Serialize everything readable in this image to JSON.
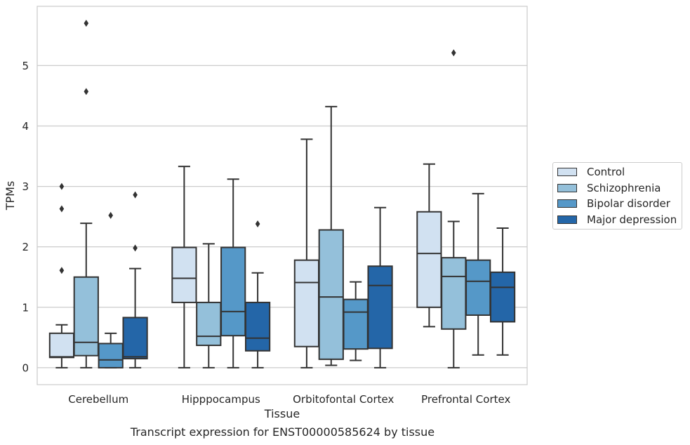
{
  "caption": "Transcript expression for ENST00000585624 by tissue",
  "chart_data": {
    "type": "box",
    "xlabel": "Tissue",
    "ylabel": "TPMs",
    "ylim": [
      -0.28,
      5.98
    ],
    "yticks": [
      0,
      1,
      2,
      3,
      4,
      5
    ],
    "grid": true,
    "legend_position": "right",
    "categories": [
      "Cerebellum",
      "Hipppocampus",
      "Orbitofontal Cortex",
      "Prefrontal Cortex"
    ],
    "series": [
      {
        "name": "Control",
        "color": "#d1e1f1",
        "boxes": [
          {
            "whisker_low": 0.0,
            "q1": 0.17,
            "median": 0.18,
            "q3": 0.57,
            "whisker_high": 0.71,
            "outliers": [
              1.61,
              2.63,
              3.0
            ]
          },
          {
            "whisker_low": 0.0,
            "q1": 1.08,
            "median": 1.48,
            "q3": 1.99,
            "whisker_high": 3.33,
            "outliers": []
          },
          {
            "whisker_low": 0.0,
            "q1": 0.35,
            "median": 1.41,
            "q3": 1.78,
            "whisker_high": 3.78,
            "outliers": []
          },
          {
            "whisker_low": 0.68,
            "q1": 1.0,
            "median": 1.89,
            "q3": 2.58,
            "whisker_high": 3.37,
            "outliers": []
          }
        ]
      },
      {
        "name": "Schizophrenia",
        "color": "#94c0da",
        "boxes": [
          {
            "whisker_low": 0.0,
            "q1": 0.2,
            "median": 0.42,
            "q3": 1.5,
            "whisker_high": 2.39,
            "outliers": [
              4.57,
              5.7
            ]
          },
          {
            "whisker_low": 0.0,
            "q1": 0.37,
            "median": 0.52,
            "q3": 1.08,
            "whisker_high": 2.05,
            "outliers": []
          },
          {
            "whisker_low": 0.04,
            "q1": 0.14,
            "median": 1.17,
            "q3": 2.28,
            "whisker_high": 4.32,
            "outliers": []
          },
          {
            "whisker_low": 0.0,
            "q1": 0.64,
            "median": 1.51,
            "q3": 1.82,
            "whisker_high": 2.42,
            "outliers": [
              5.21
            ]
          }
        ]
      },
      {
        "name": "Bipolar disorder",
        "color": "#5598c8",
        "boxes": [
          {
            "whisker_low": 0.0,
            "q1": 0.0,
            "median": 0.13,
            "q3": 0.4,
            "whisker_high": 0.57,
            "outliers": [
              2.52
            ]
          },
          {
            "whisker_low": 0.0,
            "q1": 0.53,
            "median": 0.93,
            "q3": 1.99,
            "whisker_high": 3.12,
            "outliers": []
          },
          {
            "whisker_low": 0.12,
            "q1": 0.31,
            "median": 0.92,
            "q3": 1.13,
            "whisker_high": 1.42,
            "outliers": []
          },
          {
            "whisker_low": 0.21,
            "q1": 0.87,
            "median": 1.43,
            "q3": 1.78,
            "whisker_high": 2.88,
            "outliers": []
          }
        ]
      },
      {
        "name": "Major depression",
        "color": "#2466a8",
        "boxes": [
          {
            "whisker_low": 0.0,
            "q1": 0.15,
            "median": 0.18,
            "q3": 0.83,
            "whisker_high": 1.64,
            "outliers": [
              1.98,
              2.86
            ]
          },
          {
            "whisker_low": 0.0,
            "q1": 0.28,
            "median": 0.49,
            "q3": 1.08,
            "whisker_high": 1.57,
            "outliers": [
              2.38
            ]
          },
          {
            "whisker_low": 0.0,
            "q1": 0.32,
            "median": 1.36,
            "q3": 1.68,
            "whisker_high": 2.65,
            "outliers": []
          },
          {
            "whisker_low": 0.21,
            "q1": 0.76,
            "median": 1.33,
            "q3": 1.58,
            "whisker_high": 2.31,
            "outliers": []
          }
        ]
      }
    ]
  }
}
